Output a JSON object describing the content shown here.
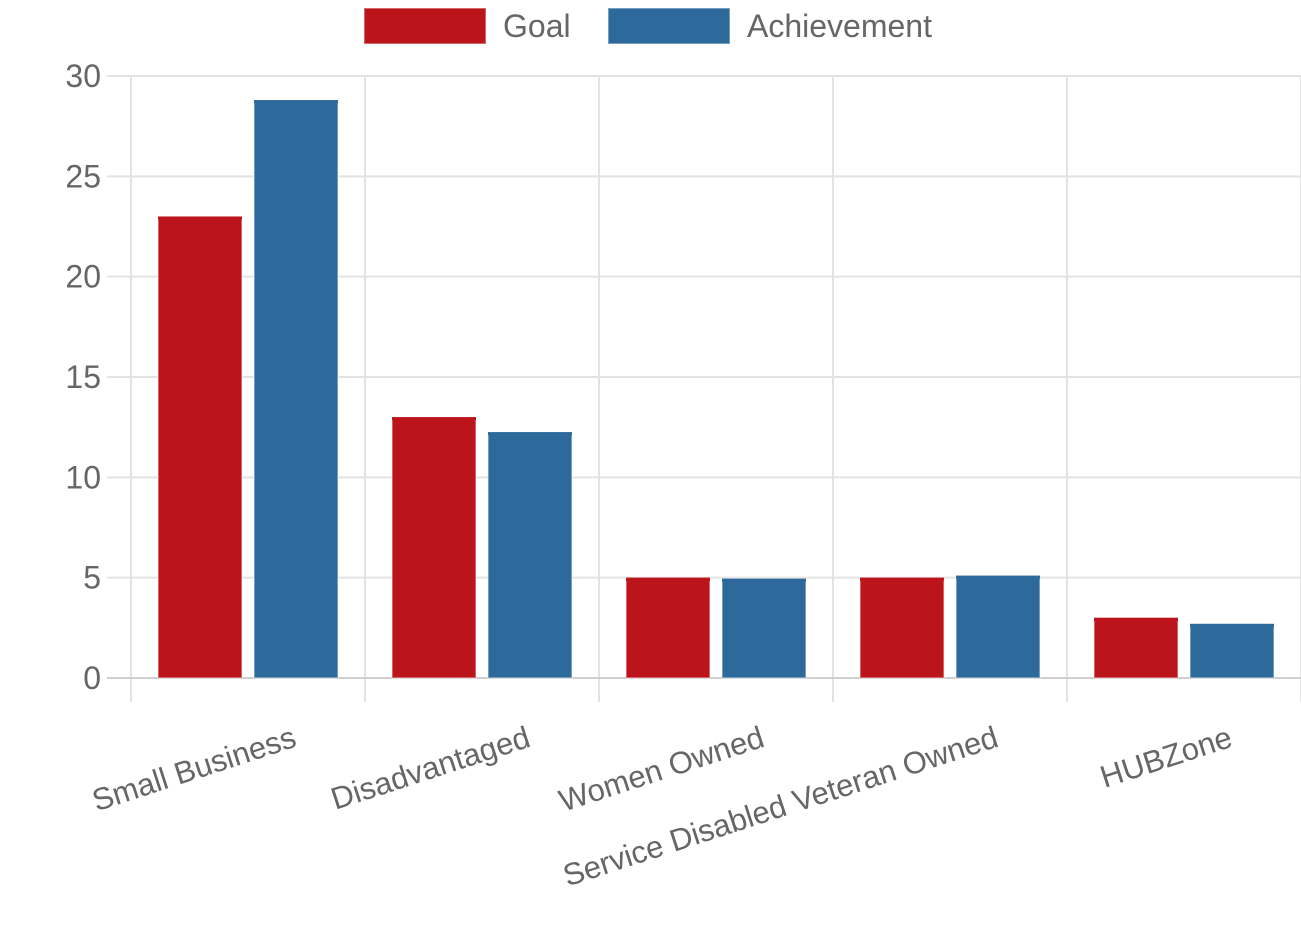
{
  "chart_data": {
    "type": "bar",
    "categories": [
      "Small Business",
      "Disadvantaged",
      "Women Owned",
      "Service Disabled Veteran Owned",
      "HUBZone"
    ],
    "series": [
      {
        "name": "Goal",
        "values": [
          23,
          13,
          5,
          5,
          3
        ],
        "color": "#bb141a"
      },
      {
        "name": "Achievement",
        "values": [
          28.8,
          12.25,
          4.95,
          5.1,
          2.7
        ],
        "color": "#2d6a9b"
      }
    ],
    "yticks": [
      0,
      5,
      10,
      15,
      20,
      25,
      30
    ],
    "ylim": [
      0,
      30
    ],
    "grid": true,
    "legend_position": "top-center",
    "title": "",
    "xlabel": "",
    "ylabel": ""
  }
}
